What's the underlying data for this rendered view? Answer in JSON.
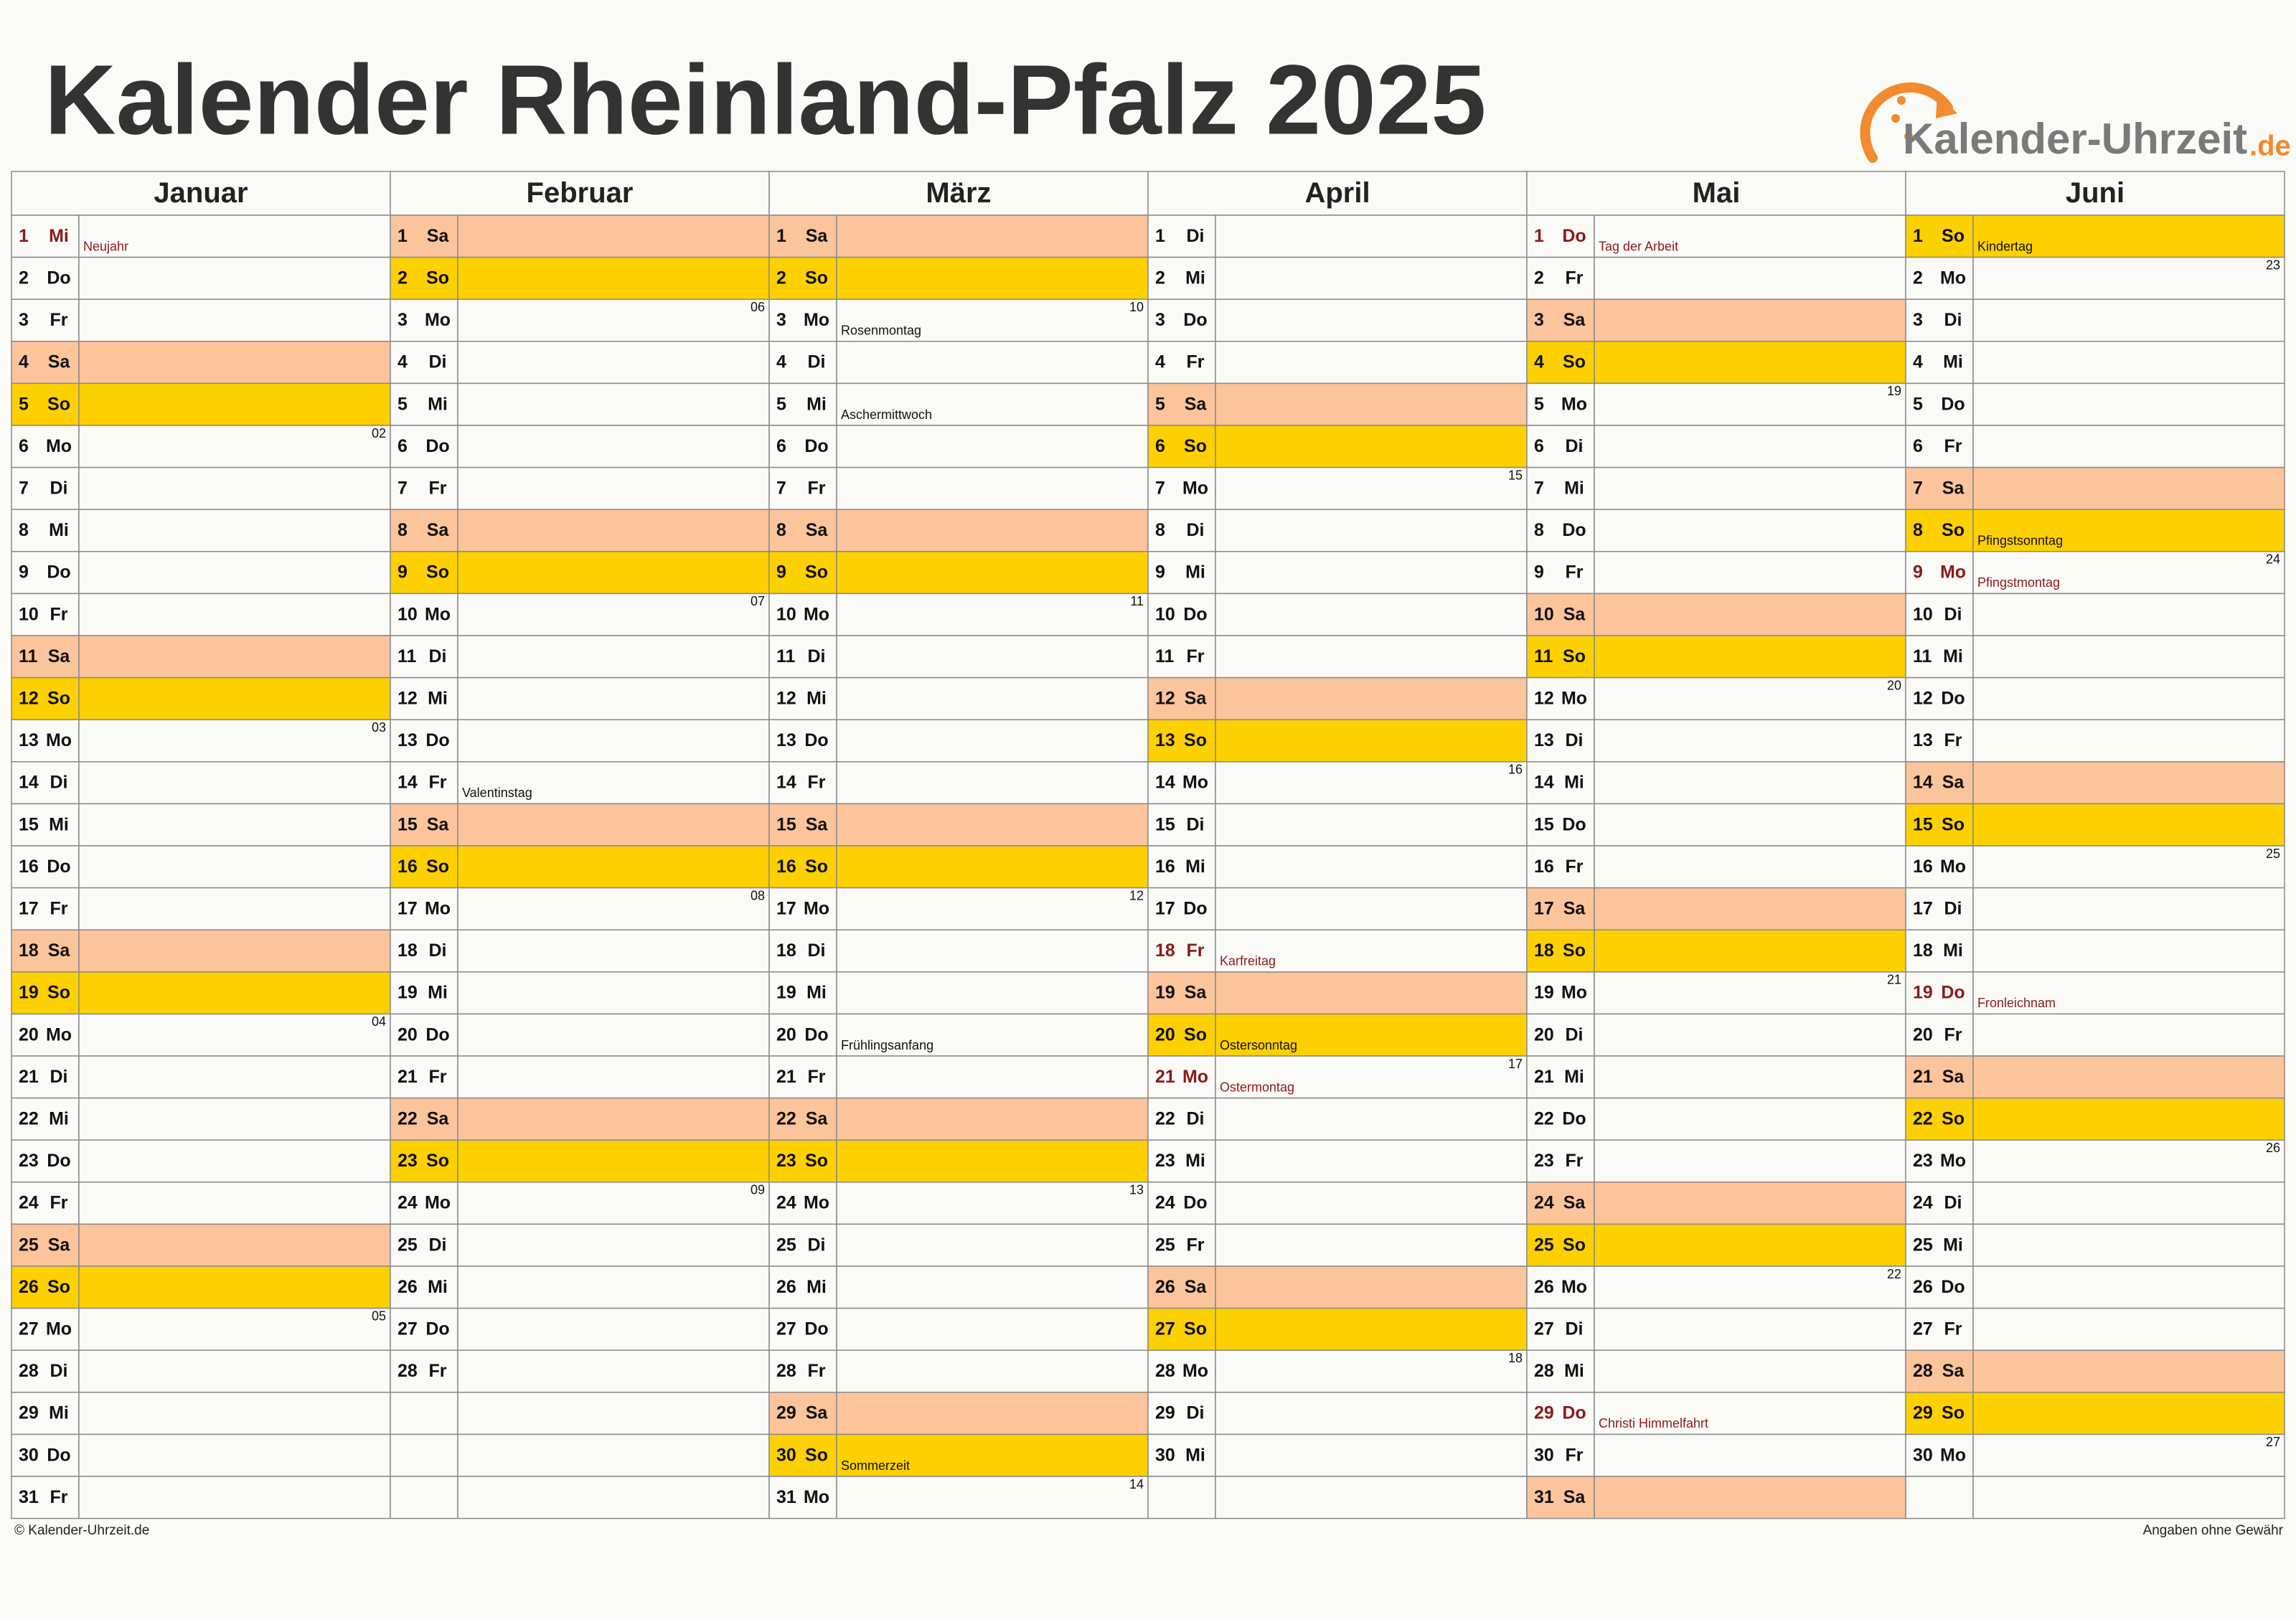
{
  "header": {
    "title": "Kalender Rheinland-Pfalz 2025",
    "logo": {
      "name": "Kalender-Uhrzeit",
      "tld": ".de"
    }
  },
  "footer": {
    "left": "© Kalender-Uhrzeit.de",
    "right": "Angaben ohne Gewähr"
  },
  "colors": {
    "weekend": {
      "Sa": "#fbc49b",
      "So": "#fdd000"
    },
    "holiday_text": "#8b1a1a",
    "background": "#fafaf7"
  },
  "months": [
    {
      "name": "Januar",
      "days": [
        {
          "d": 1,
          "wd": "Mi",
          "holiday": "Neujahr"
        },
        {
          "d": 2,
          "wd": "Do"
        },
        {
          "d": 3,
          "wd": "Fr"
        },
        {
          "d": 4,
          "wd": "Sa"
        },
        {
          "d": 5,
          "wd": "So"
        },
        {
          "d": 6,
          "wd": "Mo",
          "week": "02"
        },
        {
          "d": 7,
          "wd": "Di"
        },
        {
          "d": 8,
          "wd": "Mi"
        },
        {
          "d": 9,
          "wd": "Do"
        },
        {
          "d": 10,
          "wd": "Fr"
        },
        {
          "d": 11,
          "wd": "Sa"
        },
        {
          "d": 12,
          "wd": "So"
        },
        {
          "d": 13,
          "wd": "Mo",
          "week": "03"
        },
        {
          "d": 14,
          "wd": "Di"
        },
        {
          "d": 15,
          "wd": "Mi"
        },
        {
          "d": 16,
          "wd": "Do"
        },
        {
          "d": 17,
          "wd": "Fr"
        },
        {
          "d": 18,
          "wd": "Sa"
        },
        {
          "d": 19,
          "wd": "So"
        },
        {
          "d": 20,
          "wd": "Mo",
          "week": "04"
        },
        {
          "d": 21,
          "wd": "Di"
        },
        {
          "d": 22,
          "wd": "Mi"
        },
        {
          "d": 23,
          "wd": "Do"
        },
        {
          "d": 24,
          "wd": "Fr"
        },
        {
          "d": 25,
          "wd": "Sa"
        },
        {
          "d": 26,
          "wd": "So"
        },
        {
          "d": 27,
          "wd": "Mo",
          "week": "05"
        },
        {
          "d": 28,
          "wd": "Di"
        },
        {
          "d": 29,
          "wd": "Mi"
        },
        {
          "d": 30,
          "wd": "Do"
        },
        {
          "d": 31,
          "wd": "Fr"
        }
      ]
    },
    {
      "name": "Februar",
      "days": [
        {
          "d": 1,
          "wd": "Sa"
        },
        {
          "d": 2,
          "wd": "So"
        },
        {
          "d": 3,
          "wd": "Mo",
          "week": "06"
        },
        {
          "d": 4,
          "wd": "Di"
        },
        {
          "d": 5,
          "wd": "Mi"
        },
        {
          "d": 6,
          "wd": "Do"
        },
        {
          "d": 7,
          "wd": "Fr"
        },
        {
          "d": 8,
          "wd": "Sa"
        },
        {
          "d": 9,
          "wd": "So"
        },
        {
          "d": 10,
          "wd": "Mo",
          "week": "07"
        },
        {
          "d": 11,
          "wd": "Di"
        },
        {
          "d": 12,
          "wd": "Mi"
        },
        {
          "d": 13,
          "wd": "Do"
        },
        {
          "d": 14,
          "wd": "Fr",
          "note": "Valentinstag"
        },
        {
          "d": 15,
          "wd": "Sa"
        },
        {
          "d": 16,
          "wd": "So"
        },
        {
          "d": 17,
          "wd": "Mo",
          "week": "08"
        },
        {
          "d": 18,
          "wd": "Di"
        },
        {
          "d": 19,
          "wd": "Mi"
        },
        {
          "d": 20,
          "wd": "Do"
        },
        {
          "d": 21,
          "wd": "Fr"
        },
        {
          "d": 22,
          "wd": "Sa"
        },
        {
          "d": 23,
          "wd": "So"
        },
        {
          "d": 24,
          "wd": "Mo",
          "week": "09"
        },
        {
          "d": 25,
          "wd": "Di"
        },
        {
          "d": 26,
          "wd": "Mi"
        },
        {
          "d": 27,
          "wd": "Do"
        },
        {
          "d": 28,
          "wd": "Fr"
        }
      ]
    },
    {
      "name": "März",
      "days": [
        {
          "d": 1,
          "wd": "Sa"
        },
        {
          "d": 2,
          "wd": "So"
        },
        {
          "d": 3,
          "wd": "Mo",
          "week": "10",
          "note": "Rosenmontag"
        },
        {
          "d": 4,
          "wd": "Di"
        },
        {
          "d": 5,
          "wd": "Mi",
          "note": "Aschermittwoch"
        },
        {
          "d": 6,
          "wd": "Do"
        },
        {
          "d": 7,
          "wd": "Fr"
        },
        {
          "d": 8,
          "wd": "Sa"
        },
        {
          "d": 9,
          "wd": "So"
        },
        {
          "d": 10,
          "wd": "Mo",
          "week": "11"
        },
        {
          "d": 11,
          "wd": "Di"
        },
        {
          "d": 12,
          "wd": "Mi"
        },
        {
          "d": 13,
          "wd": "Do"
        },
        {
          "d": 14,
          "wd": "Fr"
        },
        {
          "d": 15,
          "wd": "Sa"
        },
        {
          "d": 16,
          "wd": "So"
        },
        {
          "d": 17,
          "wd": "Mo",
          "week": "12"
        },
        {
          "d": 18,
          "wd": "Di"
        },
        {
          "d": 19,
          "wd": "Mi"
        },
        {
          "d": 20,
          "wd": "Do",
          "note": "Frühlingsanfang"
        },
        {
          "d": 21,
          "wd": "Fr"
        },
        {
          "d": 22,
          "wd": "Sa"
        },
        {
          "d": 23,
          "wd": "So"
        },
        {
          "d": 24,
          "wd": "Mo",
          "week": "13"
        },
        {
          "d": 25,
          "wd": "Di"
        },
        {
          "d": 26,
          "wd": "Mi"
        },
        {
          "d": 27,
          "wd": "Do"
        },
        {
          "d": 28,
          "wd": "Fr"
        },
        {
          "d": 29,
          "wd": "Sa"
        },
        {
          "d": 30,
          "wd": "So",
          "note": "Sommerzeit"
        },
        {
          "d": 31,
          "wd": "Mo",
          "week": "14"
        }
      ]
    },
    {
      "name": "April",
      "days": [
        {
          "d": 1,
          "wd": "Di"
        },
        {
          "d": 2,
          "wd": "Mi"
        },
        {
          "d": 3,
          "wd": "Do"
        },
        {
          "d": 4,
          "wd": "Fr"
        },
        {
          "d": 5,
          "wd": "Sa"
        },
        {
          "d": 6,
          "wd": "So"
        },
        {
          "d": 7,
          "wd": "Mo",
          "week": "15"
        },
        {
          "d": 8,
          "wd": "Di"
        },
        {
          "d": 9,
          "wd": "Mi"
        },
        {
          "d": 10,
          "wd": "Do"
        },
        {
          "d": 11,
          "wd": "Fr"
        },
        {
          "d": 12,
          "wd": "Sa"
        },
        {
          "d": 13,
          "wd": "So"
        },
        {
          "d": 14,
          "wd": "Mo",
          "week": "16"
        },
        {
          "d": 15,
          "wd": "Di"
        },
        {
          "d": 16,
          "wd": "Mi"
        },
        {
          "d": 17,
          "wd": "Do"
        },
        {
          "d": 18,
          "wd": "Fr",
          "holiday": "Karfreitag"
        },
        {
          "d": 19,
          "wd": "Sa"
        },
        {
          "d": 20,
          "wd": "So",
          "note": "Ostersonntag"
        },
        {
          "d": 21,
          "wd": "Mo",
          "week": "17",
          "holiday": "Ostermontag"
        },
        {
          "d": 22,
          "wd": "Di"
        },
        {
          "d": 23,
          "wd": "Mi"
        },
        {
          "d": 24,
          "wd": "Do"
        },
        {
          "d": 25,
          "wd": "Fr"
        },
        {
          "d": 26,
          "wd": "Sa"
        },
        {
          "d": 27,
          "wd": "So"
        },
        {
          "d": 28,
          "wd": "Mo",
          "week": "18"
        },
        {
          "d": 29,
          "wd": "Di"
        },
        {
          "d": 30,
          "wd": "Mi"
        }
      ]
    },
    {
      "name": "Mai",
      "days": [
        {
          "d": 1,
          "wd": "Do",
          "holiday": "Tag der Arbeit"
        },
        {
          "d": 2,
          "wd": "Fr"
        },
        {
          "d": 3,
          "wd": "Sa"
        },
        {
          "d": 4,
          "wd": "So"
        },
        {
          "d": 5,
          "wd": "Mo",
          "week": "19"
        },
        {
          "d": 6,
          "wd": "Di"
        },
        {
          "d": 7,
          "wd": "Mi"
        },
        {
          "d": 8,
          "wd": "Do"
        },
        {
          "d": 9,
          "wd": "Fr"
        },
        {
          "d": 10,
          "wd": "Sa"
        },
        {
          "d": 11,
          "wd": "So"
        },
        {
          "d": 12,
          "wd": "Mo",
          "week": "20"
        },
        {
          "d": 13,
          "wd": "Di"
        },
        {
          "d": 14,
          "wd": "Mi"
        },
        {
          "d": 15,
          "wd": "Do"
        },
        {
          "d": 16,
          "wd": "Fr"
        },
        {
          "d": 17,
          "wd": "Sa"
        },
        {
          "d": 18,
          "wd": "So"
        },
        {
          "d": 19,
          "wd": "Mo",
          "week": "21"
        },
        {
          "d": 20,
          "wd": "Di"
        },
        {
          "d": 21,
          "wd": "Mi"
        },
        {
          "d": 22,
          "wd": "Do"
        },
        {
          "d": 23,
          "wd": "Fr"
        },
        {
          "d": 24,
          "wd": "Sa"
        },
        {
          "d": 25,
          "wd": "So"
        },
        {
          "d": 26,
          "wd": "Mo",
          "week": "22"
        },
        {
          "d": 27,
          "wd": "Di"
        },
        {
          "d": 28,
          "wd": "Mi"
        },
        {
          "d": 29,
          "wd": "Do",
          "holiday": "Christi Himmelfahrt"
        },
        {
          "d": 30,
          "wd": "Fr"
        },
        {
          "d": 31,
          "wd": "Sa"
        }
      ]
    },
    {
      "name": "Juni",
      "days": [
        {
          "d": 1,
          "wd": "So",
          "note": "Kindertag"
        },
        {
          "d": 2,
          "wd": "Mo",
          "week": "23"
        },
        {
          "d": 3,
          "wd": "Di"
        },
        {
          "d": 4,
          "wd": "Mi"
        },
        {
          "d": 5,
          "wd": "Do"
        },
        {
          "d": 6,
          "wd": "Fr"
        },
        {
          "d": 7,
          "wd": "Sa"
        },
        {
          "d": 8,
          "wd": "So",
          "note": "Pfingstsonntag"
        },
        {
          "d": 9,
          "wd": "Mo",
          "week": "24",
          "holiday": "Pfingstmontag"
        },
        {
          "d": 10,
          "wd": "Di"
        },
        {
          "d": 11,
          "wd": "Mi"
        },
        {
          "d": 12,
          "wd": "Do"
        },
        {
          "d": 13,
          "wd": "Fr"
        },
        {
          "d": 14,
          "wd": "Sa"
        },
        {
          "d": 15,
          "wd": "So"
        },
        {
          "d": 16,
          "wd": "Mo",
          "week": "25"
        },
        {
          "d": 17,
          "wd": "Di"
        },
        {
          "d": 18,
          "wd": "Mi"
        },
        {
          "d": 19,
          "wd": "Do",
          "holiday": "Fronleichnam"
        },
        {
          "d": 20,
          "wd": "Fr"
        },
        {
          "d": 21,
          "wd": "Sa"
        },
        {
          "d": 22,
          "wd": "So"
        },
        {
          "d": 23,
          "wd": "Mo",
          "week": "26"
        },
        {
          "d": 24,
          "wd": "Di"
        },
        {
          "d": 25,
          "wd": "Mi"
        },
        {
          "d": 26,
          "wd": "Do"
        },
        {
          "d": 27,
          "wd": "Fr"
        },
        {
          "d": 28,
          "wd": "Sa"
        },
        {
          "d": 29,
          "wd": "So"
        },
        {
          "d": 30,
          "wd": "Mo",
          "week": "27"
        }
      ]
    }
  ]
}
